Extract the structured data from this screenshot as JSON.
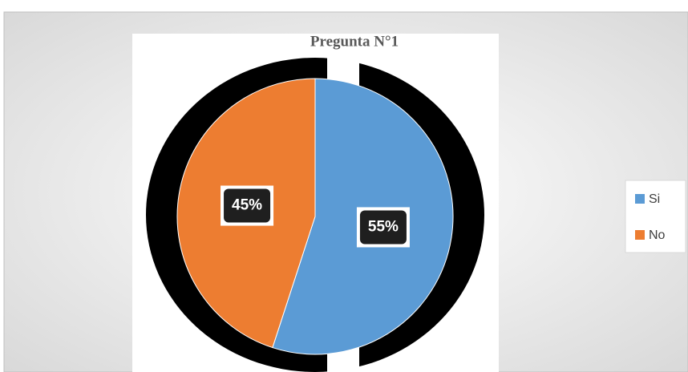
{
  "chart_data": {
    "type": "pie",
    "title": "Pregunta N°1",
    "categories": [
      "Si",
      "No"
    ],
    "values": [
      55,
      45
    ],
    "value_labels": [
      "55%",
      "45%"
    ],
    "colors": [
      "#5b9bd5",
      "#ed7d31"
    ],
    "legend": "right"
  }
}
